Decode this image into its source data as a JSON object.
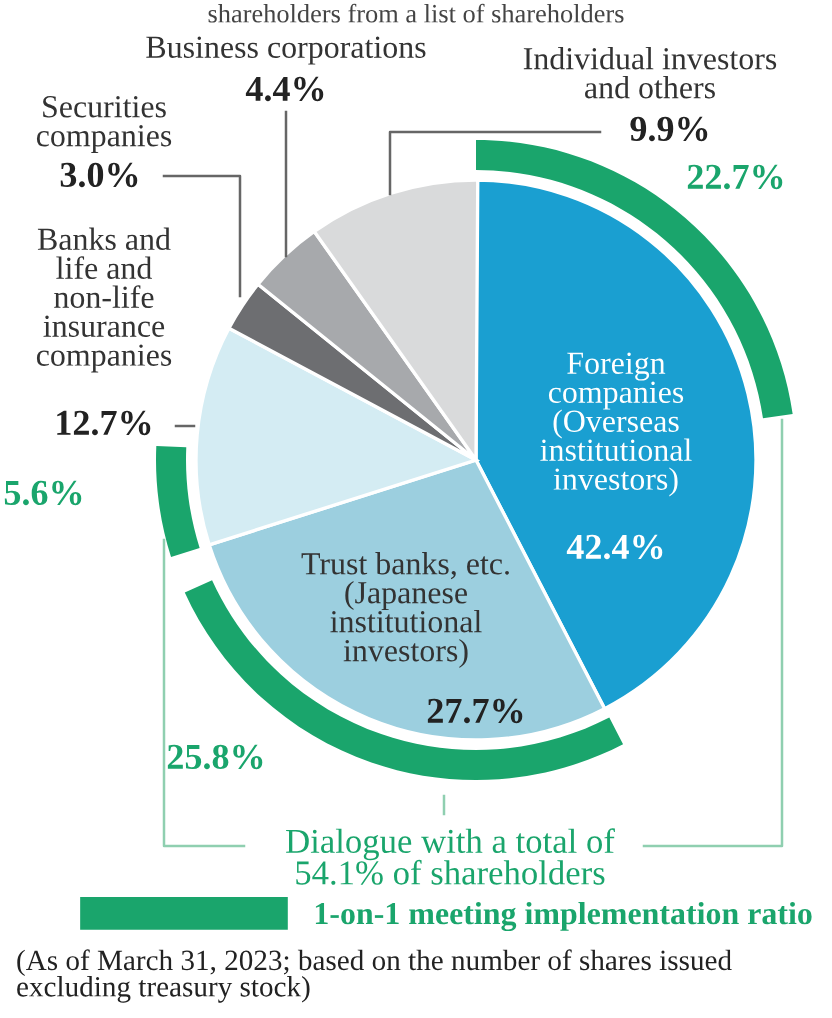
{
  "chart_data": {
    "type": "pie",
    "title": "shareholders from a list of shareholders",
    "categories": [
      "Foreign\ncompanies\n(Overseas\ninstitutional\ninvestors)",
      "Trust banks, etc.\n(Japanese\ninstitutional\ninvestors)",
      "Banks and\nlife and\nnon-life\ninsurance\ncompanies",
      "Securities\ncompanies",
      "Business corporations",
      "Individual investors\nand others"
    ],
    "values": [
      42.4,
      27.7,
      12.7,
      3.0,
      4.4,
      9.9
    ],
    "value_labels": [
      "42.4%",
      "27.7%",
      "12.7%",
      "3.0%",
      "4.4%",
      "9.9%"
    ],
    "colors": [
      "#1a9fd1",
      "#9ccfdf",
      "#d4ecf3",
      "#6d6e71",
      "#a7a9ac",
      "#d9dadb"
    ],
    "series": [
      {
        "name": "1-on-1 meeting implementation ratio",
        "type": "donut",
        "color": "#1aa56c",
        "colors": [
          "#1aa56c",
          "#1aa56c",
          "#1aa56c",
          null,
          null,
          null
        ],
        "values": [
          22.7,
          25.8,
          5.6,
          null,
          null,
          null
        ],
        "value_labels": [
          "22.7%",
          "25.8%",
          "5.6%",
          null,
          null,
          null
        ]
      }
    ],
    "legend": "bottom right",
    "annotations": [
      "Dialogue with a total of\n54.1% of shareholders",
      "(As of March 31, 2023; based on the number of shares issued\nexcluding treasury stock)"
    ]
  }
}
